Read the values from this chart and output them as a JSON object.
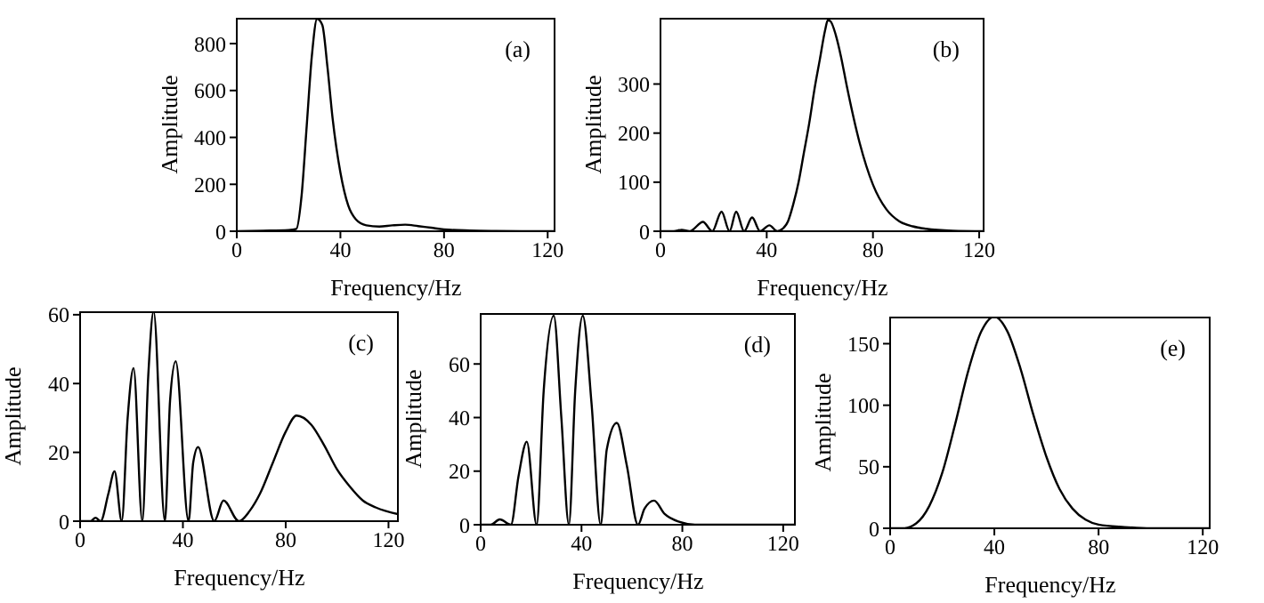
{
  "chart_data": [
    {
      "type": "line",
      "annotations": [
        "(a)"
      ],
      "xlabel": "Frequency/Hz",
      "ylabel": "Amplitude",
      "xlim": [
        0,
        123
      ],
      "xticks": [
        0,
        40,
        80,
        120
      ],
      "ylim": [
        0,
        910
      ],
      "yticks": [
        0,
        200,
        400,
        600,
        800
      ],
      "series": [
        {
          "color": "#000000",
          "x": [
            0,
            10,
            20,
            23,
            25,
            27,
            29,
            31,
            33,
            35,
            37,
            40,
            43,
            46,
            50,
            55,
            60,
            65,
            70,
            75,
            80,
            90,
            100,
            110,
            123
          ],
          "values": [
            0,
            2,
            5,
            10,
            150,
            450,
            750,
            905,
            880,
            700,
            480,
            250,
            110,
            50,
            25,
            20,
            25,
            28,
            22,
            15,
            8,
            3,
            1,
            0,
            0
          ]
        }
      ]
    },
    {
      "type": "line",
      "annotations": [
        "(b)"
      ],
      "xlabel": "Frequency/Hz",
      "ylabel": "Amplitude",
      "xlim": [
        0,
        122
      ],
      "xticks": [
        0,
        40,
        80,
        120
      ],
      "ylim": [
        0,
        435
      ],
      "yticks": [
        0,
        100,
        200,
        300
      ],
      "series": [
        {
          "color": "#000000",
          "x": [
            0,
            5,
            8,
            11,
            16,
            19.5,
            23,
            26,
            28.5,
            31.5,
            34.5,
            37.5,
            41,
            44,
            46,
            48,
            50,
            52,
            54,
            56,
            58,
            60,
            62,
            63,
            64,
            66,
            68,
            70,
            75,
            80,
            85,
            90,
            95,
            100,
            110,
            122
          ],
          "values": [
            0,
            0,
            3,
            0,
            19,
            0,
            40,
            0,
            40,
            0,
            28,
            0,
            12,
            0,
            5,
            20,
            55,
            100,
            160,
            220,
            290,
            350,
            410,
            430,
            428,
            400,
            355,
            300,
            180,
            95,
            45,
            20,
            10,
            5,
            1,
            0
          ]
        }
      ]
    },
    {
      "type": "line",
      "annotations": [
        "(c)"
      ],
      "xlabel": "Frequency/Hz",
      "ylabel": "Amplitude",
      "xlim": [
        0,
        124
      ],
      "xticks": [
        0,
        40,
        80,
        120
      ],
      "ylim": [
        0,
        61
      ],
      "yticks": [
        0,
        20,
        40,
        60
      ],
      "series": [
        {
          "color": "#000000",
          "x": [
            0,
            4,
            6,
            8,
            11,
            13.4,
            16.2,
            18.5,
            20.8,
            24.2,
            26.5,
            28.6,
            33,
            35,
            37.2,
            42.2,
            44,
            45.9,
            52.2,
            55.8,
            61.8,
            66,
            70,
            75,
            80,
            84.2,
            90,
            95,
            100,
            105,
            110,
            115,
            124
          ],
          "values": [
            0,
            0,
            1,
            0,
            8,
            14.5,
            0,
            30,
            44.5,
            0,
            42,
            61,
            0,
            35,
            46.5,
            0,
            17,
            21.5,
            0,
            6,
            0,
            3,
            8,
            17,
            26,
            30.7,
            28,
            22,
            15,
            10,
            6,
            4,
            2
          ]
        }
      ]
    },
    {
      "type": "line",
      "annotations": [
        "(d)"
      ],
      "xlabel": "Frequency/Hz",
      "ylabel": "Amplitude",
      "xlim": [
        0,
        125
      ],
      "xticks": [
        0,
        40,
        80,
        120
      ],
      "ylim": [
        0,
        79
      ],
      "yticks": [
        0,
        20,
        40,
        60
      ],
      "series": [
        {
          "color": "#000000",
          "x": [
            0,
            4,
            7.6,
            12,
            15,
            18.3,
            22.2,
            25,
            29,
            32,
            35,
            37.5,
            40.5,
            44,
            47.6,
            50,
            54,
            58,
            62.4,
            65,
            68.8,
            73,
            79,
            85,
            90,
            100,
            110,
            125
          ],
          "values": [
            0,
            0,
            2,
            0,
            18,
            31,
            0,
            50,
            78,
            40,
            0,
            50,
            78,
            45,
            0,
            28,
            38,
            22,
            0,
            6,
            9,
            4,
            1,
            0,
            0,
            0,
            0,
            0
          ]
        }
      ]
    },
    {
      "type": "line",
      "annotations": [
        "(e)"
      ],
      "xlabel": "Frequency/Hz",
      "ylabel": "Amplitude",
      "xlim": [
        0,
        123
      ],
      "xticks": [
        0,
        40,
        80,
        120
      ],
      "ylim": [
        0,
        172
      ],
      "yticks": [
        0,
        50,
        100,
        150
      ],
      "series": [
        {
          "color": "#000000",
          "x": [
            0,
            5,
            10,
            15,
            20,
            25,
            30,
            35,
            40,
            45,
            50,
            55,
            60,
            65,
            70,
            75,
            80,
            90,
            100,
            110,
            123
          ],
          "values": [
            0,
            0,
            4,
            18,
            45,
            85,
            128,
            160,
            172,
            160,
            130,
            92,
            58,
            32,
            16,
            7,
            3,
            1,
            0,
            0,
            0
          ]
        }
      ]
    }
  ]
}
